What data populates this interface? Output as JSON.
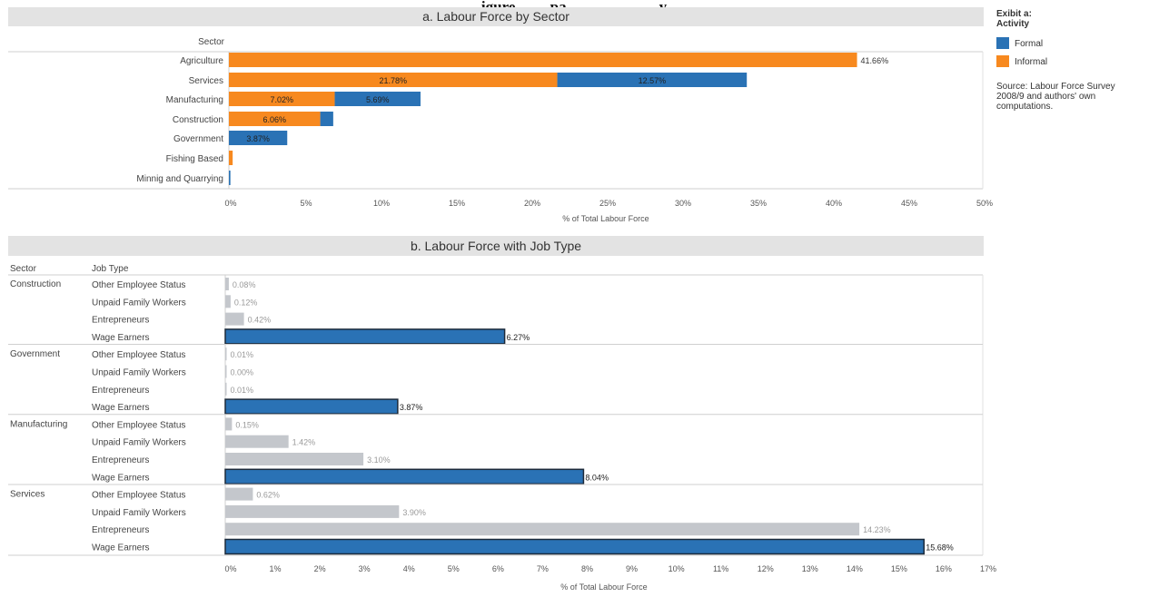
{
  "header": {
    "title_fragment": "igure ... ... pa... ... ... ... ... ... y"
  },
  "legend": {
    "title": "Exibit a:\nActivity",
    "items": [
      {
        "label": "Formal",
        "color": "#2a72b5"
      },
      {
        "label": "Informal",
        "color": "#f7891f"
      }
    ],
    "source": "Source: Labour Force Survey 2008/9 and authors' own computations."
  },
  "colors": {
    "formal": "#2a72b5",
    "informal": "#f7891f",
    "grey": "#c4c7cc",
    "wage": "#2a72b5"
  },
  "chart_data": [
    {
      "type": "bar",
      "title": "a. Labour Force by Sector",
      "row_header": "Sector",
      "xlabel": "% of Total Labour Force",
      "xlim": [
        0,
        50
      ],
      "xticks": [
        "0%",
        "5%",
        "10%",
        "15%",
        "20%",
        "25%",
        "30%",
        "35%",
        "40%",
        "45%",
        "50%"
      ],
      "stacked": true,
      "categories": [
        "Agriculture",
        "Services",
        "Manufacturing",
        "Construction",
        "Government",
        "Fishing Based",
        "Minnig and Quarrying"
      ],
      "series": [
        {
          "name": "Informal",
          "values": [
            41.66,
            21.78,
            7.02,
            6.06,
            0,
            0.25,
            0
          ],
          "labels": [
            "41.66%",
            "21.78%",
            "7.02%",
            "6.06%",
            "",
            "",
            ""
          ]
        },
        {
          "name": "Formal",
          "values": [
            0,
            12.57,
            5.69,
            0.86,
            3.87,
            0,
            0.1
          ],
          "labels": [
            "",
            "12.57%",
            "5.69%",
            "",
            "3.87%",
            "",
            ""
          ]
        }
      ]
    },
    {
      "type": "bar",
      "title": "b. Labour Force with Job Type",
      "row_headers": [
        "Sector",
        "Job Type"
      ],
      "xlabel": "% of Total Labour Force",
      "xlim": [
        0,
        17
      ],
      "xticks": [
        "0%",
        "1%",
        "2%",
        "3%",
        "4%",
        "5%",
        "6%",
        "7%",
        "8%",
        "9%",
        "10%",
        "11%",
        "12%",
        "13%",
        "14%",
        "15%",
        "16%",
        "17%"
      ],
      "groups": [
        {
          "sector": "Construction",
          "rows": [
            {
              "job": "Other Employee Status",
              "value": 0.08,
              "label": "0.08%"
            },
            {
              "job": "Unpaid Family Workers",
              "value": 0.12,
              "label": "0.12%"
            },
            {
              "job": "Entrepreneurs",
              "value": 0.42,
              "label": "0.42%"
            },
            {
              "job": "Wage Earners",
              "value": 6.27,
              "label": "6.27%"
            }
          ]
        },
        {
          "sector": "Government",
          "rows": [
            {
              "job": "Other Employee Status",
              "value": 0.01,
              "label": "0.01%"
            },
            {
              "job": "Unpaid Family Workers",
              "value": 0.0,
              "label": "0.00%"
            },
            {
              "job": "Entrepreneurs",
              "value": 0.01,
              "label": "0.01%"
            },
            {
              "job": "Wage Earners",
              "value": 3.87,
              "label": "3.87%"
            }
          ]
        },
        {
          "sector": "Manufacturing",
          "rows": [
            {
              "job": "Other Employee Status",
              "value": 0.15,
              "label": "0.15%"
            },
            {
              "job": "Unpaid Family Workers",
              "value": 1.42,
              "label": "1.42%"
            },
            {
              "job": "Entrepreneurs",
              "value": 3.1,
              "label": "3.10%"
            },
            {
              "job": "Wage Earners",
              "value": 8.04,
              "label": "8.04%"
            }
          ]
        },
        {
          "sector": "Services",
          "rows": [
            {
              "job": "Other Employee Status",
              "value": 0.62,
              "label": "0.62%"
            },
            {
              "job": "Unpaid Family Workers",
              "value": 3.9,
              "label": "3.90%"
            },
            {
              "job": "Entrepreneurs",
              "value": 14.23,
              "label": "14.23%"
            },
            {
              "job": "Wage Earners",
              "value": 15.68,
              "label": "15.68%"
            }
          ]
        }
      ]
    }
  ]
}
